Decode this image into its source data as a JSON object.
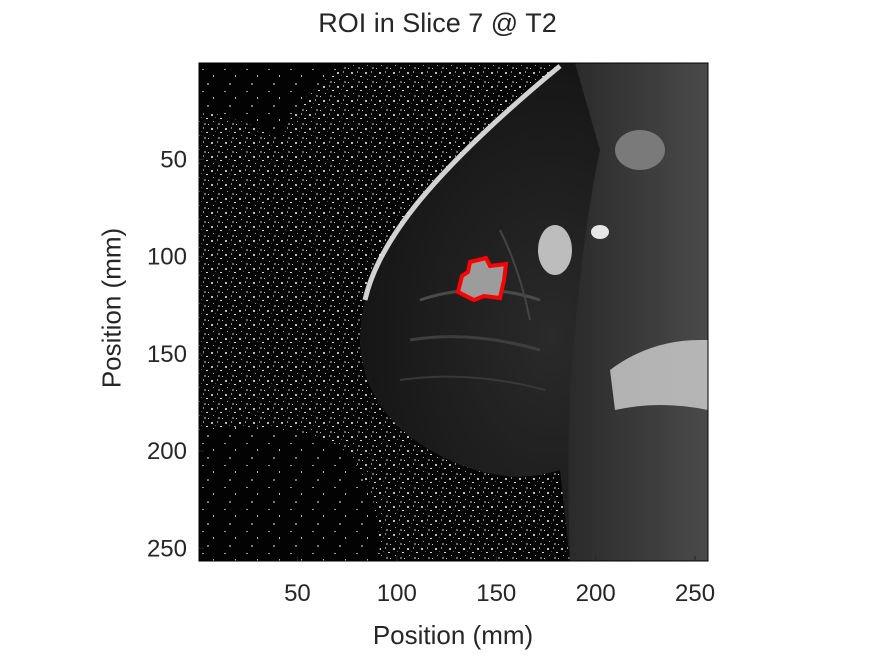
{
  "title": "ROI in Slice 7 @ T2",
  "xlabel": "Position (mm)",
  "ylabel": "Position (mm)",
  "xticks": [
    "50",
    "100",
    "150",
    "200",
    "250"
  ],
  "yticks": [
    "50",
    "100",
    "150",
    "200",
    "250"
  ],
  "roi_color": "#ff0000",
  "image_description_icon": "mri-slice-image"
}
